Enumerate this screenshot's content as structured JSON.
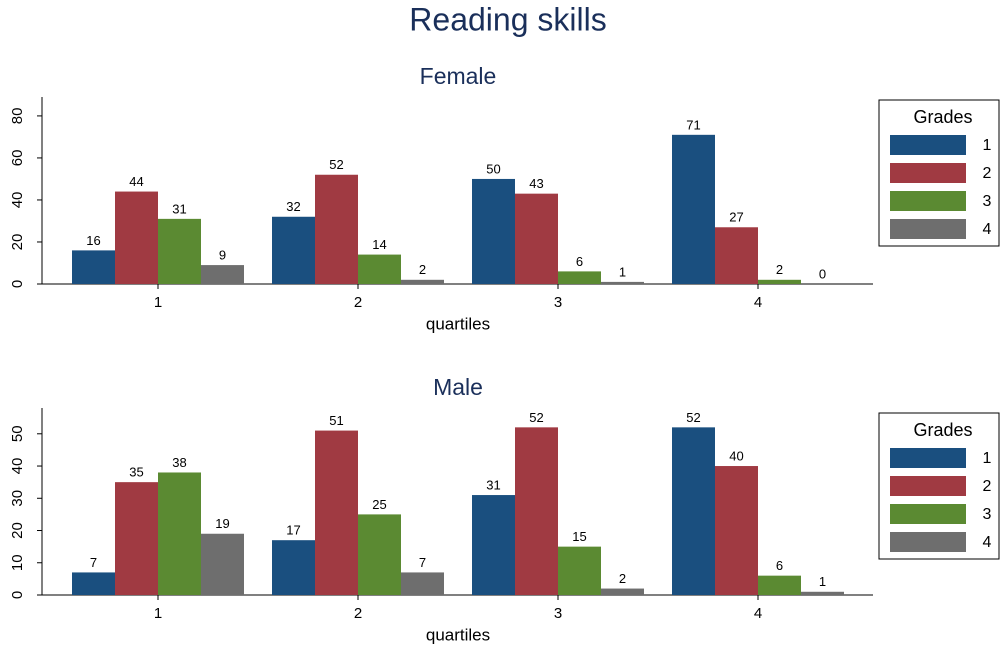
{
  "title": "Reading skills",
  "chart_data": [
    {
      "type": "bar",
      "title": "Female",
      "x_label": "quartiles",
      "categories": [
        "1",
        "2",
        "3",
        "4"
      ],
      "legend_title": "Grades",
      "legend": "right",
      "ylim": [
        0,
        89
      ],
      "yticks": [
        0,
        20,
        40,
        60,
        80
      ],
      "series": [
        {
          "name": "1",
          "color": "#1a4f7f",
          "values": [
            16,
            32,
            50,
            71
          ]
        },
        {
          "name": "2",
          "color": "#a03a42",
          "values": [
            44,
            52,
            43,
            27
          ]
        },
        {
          "name": "3",
          "color": "#5b8a32",
          "values": [
            31,
            14,
            6,
            2
          ]
        },
        {
          "name": "4",
          "color": "#6e6e6e",
          "values": [
            9,
            2,
            1,
            0
          ]
        }
      ]
    },
    {
      "type": "bar",
      "title": "Male",
      "x_label": "quartiles",
      "categories": [
        "1",
        "2",
        "3",
        "4"
      ],
      "legend_title": "Grades",
      "legend": "right",
      "ylim": [
        0,
        58
      ],
      "yticks": [
        0,
        10,
        20,
        30,
        40,
        50
      ],
      "series": [
        {
          "name": "1",
          "color": "#1a4f7f",
          "values": [
            7,
            17,
            31,
            52
          ]
        },
        {
          "name": "2",
          "color": "#a03a42",
          "values": [
            35,
            51,
            52,
            40
          ]
        },
        {
          "name": "3",
          "color": "#5b8a32",
          "values": [
            38,
            25,
            15,
            6
          ]
        },
        {
          "name": "4",
          "color": "#6e6e6e",
          "values": [
            19,
            7,
            2,
            1
          ]
        }
      ]
    }
  ]
}
